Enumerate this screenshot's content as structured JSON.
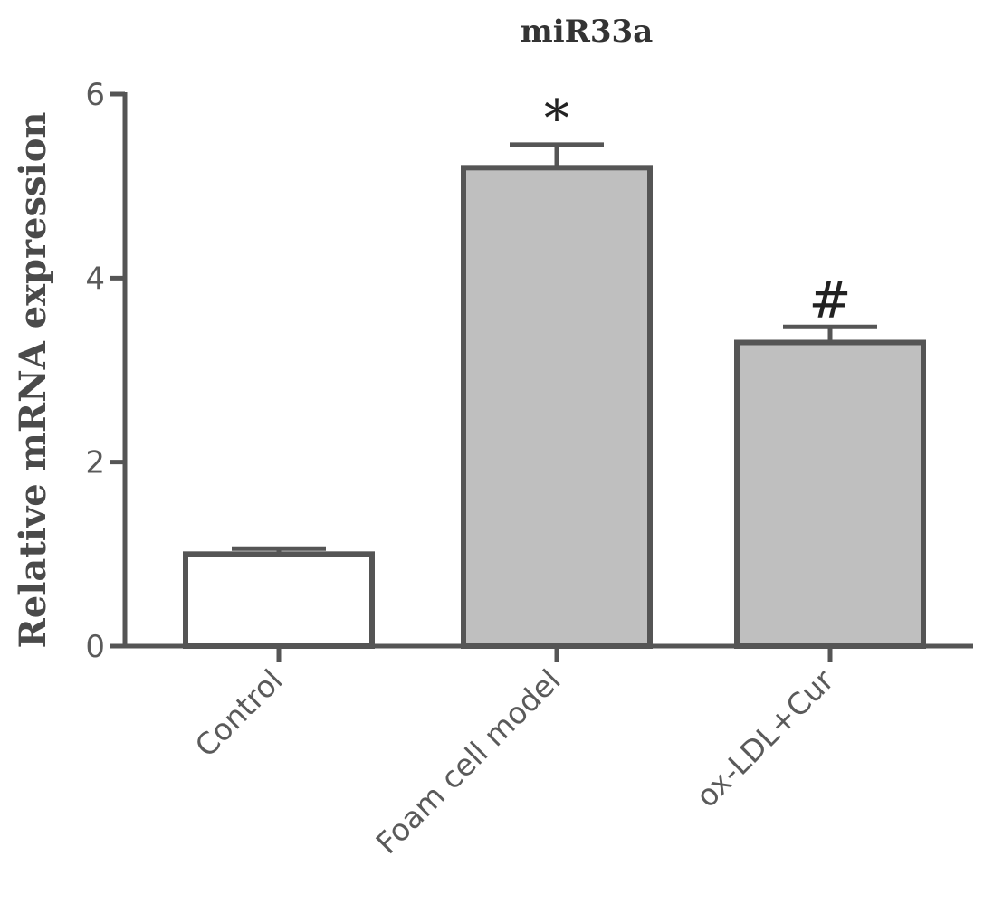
{
  "chart_data": {
    "type": "bar",
    "title": "miR33a",
    "xlabel": "",
    "ylabel": "Relative mRNA expression",
    "ylim": [
      0,
      6
    ],
    "yticks": [
      0,
      2,
      4,
      6
    ],
    "categories": [
      "Control",
      "Foam cell model",
      "ox-LDL+Cur"
    ],
    "values": [
      1.0,
      5.2,
      3.3
    ],
    "errors": [
      0.06,
      0.25,
      0.17
    ],
    "annotations": [
      "",
      "*",
      "#"
    ],
    "bar_fills": [
      "#ffffff",
      "#bfbfbf",
      "#bfbfbf"
    ],
    "stroke_color": "#555555",
    "grid": false,
    "legend": "none"
  }
}
